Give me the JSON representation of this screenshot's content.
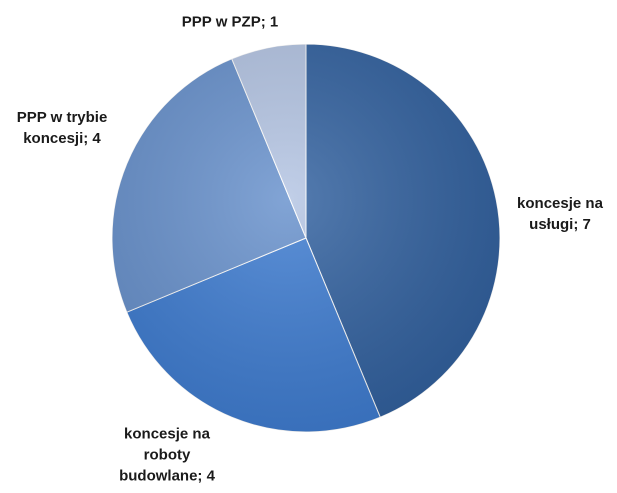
{
  "chart_data": {
    "type": "pie",
    "values": [
      7,
      4,
      4,
      1
    ],
    "value_labels": [
      "koncesje na usługi; 7",
      "koncesje na roboty budowlane; 4",
      "PPP w trybie koncesji; 4",
      "PPP w PZP; 1"
    ],
    "colors": [
      "#2f5f9e",
      "#3c7bd1",
      "#6690cc",
      "#b3c4e3"
    ],
    "start_angle": 0,
    "direction": "clockwise"
  }
}
